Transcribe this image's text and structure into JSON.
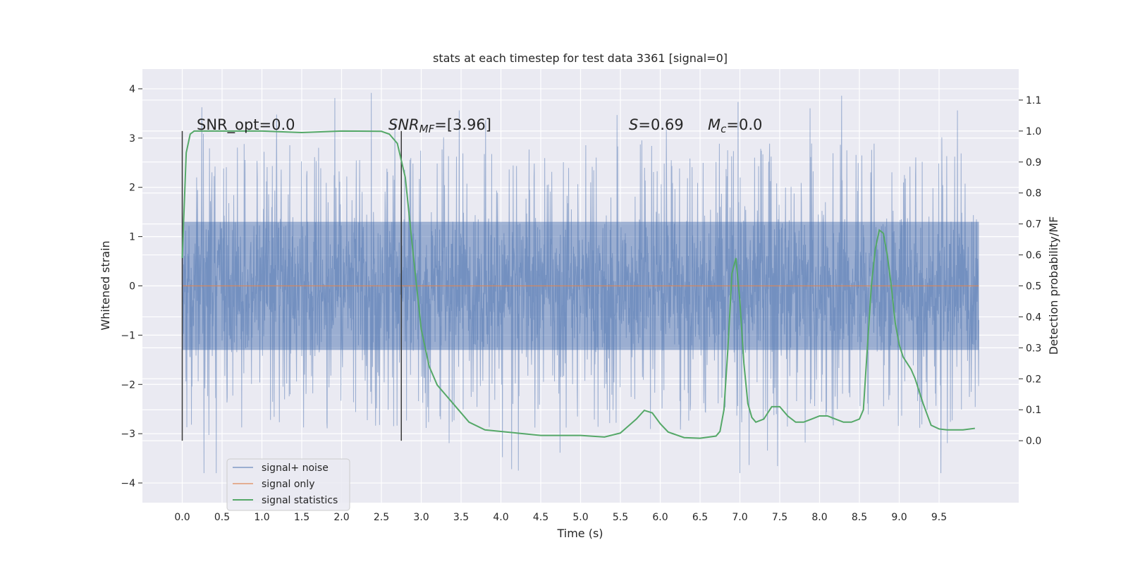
{
  "chart_data": {
    "type": "line",
    "title": "stats at each timestep for test data 3361 [signal=0]",
    "xlabel": "Time (s)",
    "ylabel_left": "Whitened strain",
    "ylabel_right": "Detection probability/MF",
    "xlim": [
      -0.5,
      10.5
    ],
    "ylim_left": [
      -4.4,
      4.4
    ],
    "ylim_right": [
      -0.2,
      1.2
    ],
    "x_ticks": [
      "0.0",
      "0.5",
      "1.0",
      "1.5",
      "2.0",
      "2.5",
      "3.0",
      "3.5",
      "4.0",
      "4.5",
      "5.0",
      "5.5",
      "6.0",
      "6.5",
      "7.0",
      "7.5",
      "8.0",
      "8.5",
      "9.0",
      "9.5"
    ],
    "y_ticks_left": [
      "−4",
      "−3",
      "−2",
      "−1",
      "0",
      "1",
      "2",
      "3",
      "4"
    ],
    "y_ticks_right": [
      "0.0",
      "0.1",
      "0.2",
      "0.3",
      "0.4",
      "0.5",
      "0.6",
      "0.7",
      "0.8",
      "0.9",
      "1.0",
      "1.1"
    ],
    "grid": true,
    "legend_position": "lower-left",
    "colors": {
      "background": "#eaeaf2",
      "grid": "#ffffff",
      "noise": "#4c72b0",
      "signal_only": "#dd8452",
      "statistics": "#55a868",
      "markers": "#3a3a3a"
    },
    "annotations": {
      "snr_opt": "SNR_opt=0.0",
      "snr_mf_prefix": "SNR",
      "snr_mf_sub": "MF",
      "snr_mf_value": "=[3.96]",
      "s_var": "S",
      "s_value": "=0.69",
      "mc_var": "M",
      "mc_sub": "c",
      "mc_value": "=0.0"
    },
    "vertical_markers": [
      0.0,
      2.75
    ],
    "series": [
      {
        "name": "signal+ noise",
        "axis": "left",
        "style": "dense noise trace",
        "x_range": [
          0.0,
          10.0
        ],
        "core_band": [
          -1.3,
          1.3
        ],
        "typical_peak": [
          -2.7,
          3.0
        ],
        "extreme_range": [
          -3.8,
          4.1
        ]
      },
      {
        "name": "signal only",
        "axis": "left",
        "x": [
          0.0,
          10.0
        ],
        "values": [
          0.0,
          0.0
        ]
      },
      {
        "name": "signal statistics",
        "axis": "right",
        "x": [
          0.0,
          0.05,
          0.1,
          0.15,
          0.25,
          0.5,
          1.0,
          1.5,
          2.0,
          2.5,
          2.6,
          2.7,
          2.8,
          2.9,
          3.0,
          3.1,
          3.2,
          3.4,
          3.6,
          3.8,
          4.0,
          4.5,
          5.0,
          5.3,
          5.5,
          5.7,
          5.8,
          5.9,
          6.0,
          6.1,
          6.3,
          6.5,
          6.7,
          6.75,
          6.8,
          6.85,
          6.9,
          6.95,
          7.0,
          7.05,
          7.1,
          7.15,
          7.2,
          7.3,
          7.4,
          7.5,
          7.6,
          7.7,
          7.8,
          7.9,
          8.0,
          8.1,
          8.2,
          8.3,
          8.4,
          8.5,
          8.55,
          8.6,
          8.65,
          8.7,
          8.75,
          8.8,
          8.85,
          8.9,
          8.95,
          9.0,
          9.05,
          9.1,
          9.15,
          9.2,
          9.3,
          9.4,
          9.5,
          9.6,
          9.7,
          9.8,
          9.95
        ],
        "values": [
          0.59,
          0.93,
          0.99,
          1.0,
          1.0,
          1.0,
          1.0,
          0.995,
          1.0,
          0.999,
          0.99,
          0.96,
          0.85,
          0.6,
          0.36,
          0.24,
          0.18,
          0.12,
          0.06,
          0.035,
          0.03,
          0.017,
          0.017,
          0.012,
          0.025,
          0.07,
          0.098,
          0.09,
          0.055,
          0.028,
          0.01,
          0.008,
          0.015,
          0.03,
          0.1,
          0.3,
          0.54,
          0.59,
          0.45,
          0.25,
          0.12,
          0.075,
          0.06,
          0.07,
          0.11,
          0.11,
          0.08,
          0.06,
          0.06,
          0.07,
          0.08,
          0.08,
          0.07,
          0.06,
          0.06,
          0.07,
          0.1,
          0.3,
          0.5,
          0.62,
          0.68,
          0.67,
          0.6,
          0.5,
          0.38,
          0.31,
          0.27,
          0.25,
          0.23,
          0.2,
          0.12,
          0.05,
          0.038,
          0.035,
          0.035,
          0.035,
          0.04
        ]
      }
    ]
  }
}
